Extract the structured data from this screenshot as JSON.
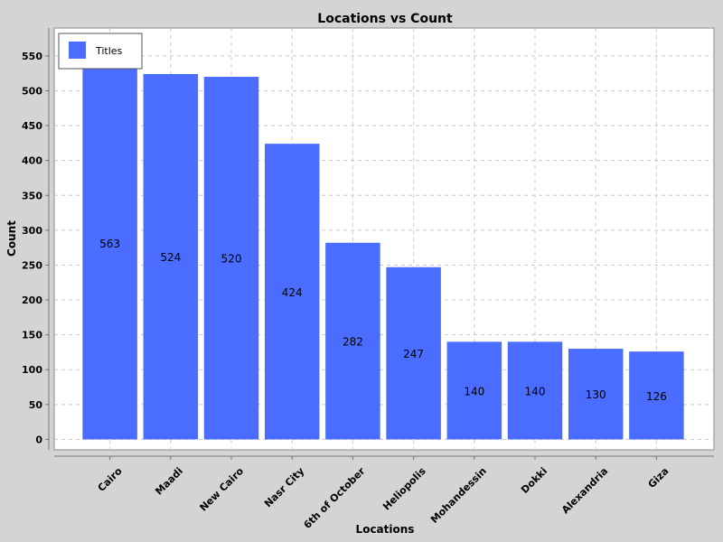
{
  "chart_data": {
    "type": "bar",
    "title": "Locations vs Count",
    "xlabel": "Locations",
    "ylabel": "Count",
    "categories": [
      "Cairo",
      "Maadi",
      "New Cairo",
      "Nasr City",
      "6th of October",
      "Heliopolis",
      "Mohandessin",
      "Dokki",
      "Alexandria",
      "Giza"
    ],
    "series": [
      {
        "name": "Titles",
        "values": [
          563,
          524,
          520,
          424,
          282,
          247,
          140,
          140,
          130,
          126
        ]
      }
    ],
    "ylim": [
      -15,
      590
    ],
    "yticks": [
      0,
      50,
      100,
      150,
      200,
      250,
      300,
      350,
      400,
      450,
      500,
      550
    ],
    "grid": true,
    "legend": "top-left",
    "colors": {
      "bar": "#4a6dff",
      "plot_bg": "#ffffff",
      "page_bg": "#d4d4d4",
      "grid": "#c8c8c8"
    }
  }
}
